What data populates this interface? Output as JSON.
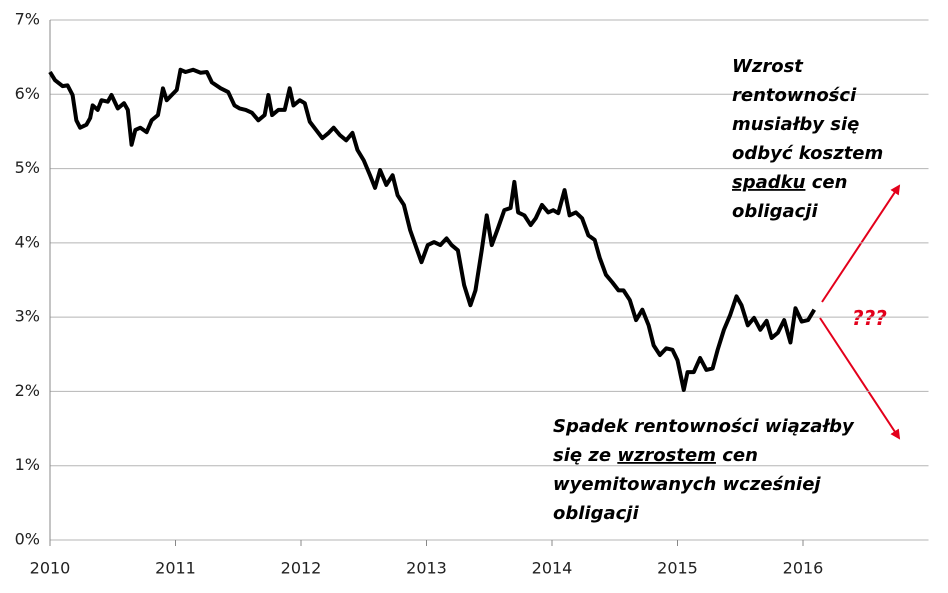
{
  "chart_data": {
    "type": "line",
    "x": [
      2010.0,
      2010.04,
      2010.1,
      2010.14,
      2010.18,
      2010.21,
      2010.24,
      2010.29,
      2010.32,
      2010.34,
      2010.38,
      2010.41,
      2010.46,
      2010.49,
      2010.54,
      2010.59,
      2010.62,
      2010.65,
      2010.68,
      2010.72,
      2010.77,
      2010.81,
      2010.86,
      2010.9,
      2010.93,
      2010.97,
      2011.01,
      2011.04,
      2011.08,
      2011.14,
      2011.2,
      2011.25,
      2011.29,
      2011.36,
      2011.42,
      2011.47,
      2011.51,
      2011.56,
      2011.61,
      2011.66,
      2011.71,
      2011.74,
      2011.77,
      2011.82,
      2011.87,
      2011.91,
      2011.94,
      2011.99,
      2012.03,
      2012.07,
      2012.12,
      2012.17,
      2012.22,
      2012.26,
      2012.31,
      2012.36,
      2012.41,
      2012.45,
      2012.5,
      2012.55,
      2012.59,
      2012.63,
      2012.68,
      2012.73,
      2012.77,
      2012.82,
      2012.87,
      2012.92,
      2012.96,
      2013.01,
      2013.06,
      2013.11,
      2013.16,
      2013.2,
      2013.25,
      2013.3,
      2013.35,
      2013.39,
      2013.44,
      2013.48,
      2013.52,
      2013.57,
      2013.62,
      2013.67,
      2013.7,
      2013.73,
      2013.78,
      2013.83,
      2013.87,
      2013.92,
      2013.97,
      2014.01,
      2014.05,
      2014.1,
      2014.14,
      2014.19,
      2014.24,
      2014.29,
      2014.34,
      2014.38,
      2014.43,
      2014.48,
      2014.53,
      2014.57,
      2014.62,
      2014.67,
      2014.72,
      2014.77,
      2014.81,
      2014.86,
      2014.91,
      2014.96,
      2015.0,
      2015.05,
      2015.08,
      2015.13,
      2015.18,
      2015.23,
      2015.28,
      2015.32,
      2015.37,
      2015.42,
      2015.47,
      2015.51,
      2015.56,
      2015.61,
      2015.66,
      2015.71,
      2015.75,
      2015.8,
      2015.85,
      2015.9,
      2015.94,
      2015.99,
      2016.04,
      2016.09
    ],
    "values": [
      6.3,
      6.19,
      6.11,
      6.12,
      5.99,
      5.65,
      5.55,
      5.59,
      5.68,
      5.85,
      5.79,
      5.92,
      5.9,
      5.99,
      5.81,
      5.88,
      5.79,
      5.32,
      5.52,
      5.55,
      5.49,
      5.65,
      5.72,
      6.08,
      5.92,
      5.99,
      6.06,
      6.33,
      6.3,
      6.33,
      6.29,
      6.3,
      6.16,
      6.08,
      6.03,
      5.85,
      5.81,
      5.79,
      5.75,
      5.65,
      5.72,
      5.99,
      5.72,
      5.79,
      5.79,
      6.08,
      5.85,
      5.92,
      5.88,
      5.63,
      5.52,
      5.41,
      5.48,
      5.55,
      5.45,
      5.38,
      5.48,
      5.25,
      5.11,
      4.91,
      4.74,
      4.98,
      4.78,
      4.91,
      4.64,
      4.51,
      4.17,
      3.93,
      3.74,
      3.97,
      4.01,
      3.97,
      4.06,
      3.97,
      3.9,
      3.43,
      3.16,
      3.36,
      3.9,
      4.37,
      3.97,
      4.2,
      4.44,
      4.47,
      4.82,
      4.41,
      4.37,
      4.24,
      4.33,
      4.51,
      4.41,
      4.44,
      4.4,
      4.71,
      4.37,
      4.41,
      4.33,
      4.1,
      4.04,
      3.8,
      3.57,
      3.47,
      3.36,
      3.36,
      3.23,
      2.96,
      3.1,
      2.89,
      2.62,
      2.49,
      2.58,
      2.56,
      2.42,
      2.02,
      2.26,
      2.26,
      2.45,
      2.29,
      2.31,
      2.56,
      2.83,
      3.03,
      3.28,
      3.16,
      2.89,
      2.99,
      2.83,
      2.95,
      2.72,
      2.79,
      2.96,
      2.66,
      3.12,
      2.94,
      2.96,
      3.1
    ],
    "color": "#000000",
    "xlim": [
      2010,
      2017
    ],
    "ylim": [
      0,
      7
    ],
    "xticks": [
      2010,
      2011,
      2012,
      2013,
      2014,
      2015,
      2016
    ],
    "yticks": [
      {
        "value": 0,
        "label": "0%"
      },
      {
        "value": 1,
        "label": "1%"
      },
      {
        "value": 2,
        "label": "2%"
      },
      {
        "value": 3,
        "label": "3%"
      },
      {
        "value": 4,
        "label": "4%"
      },
      {
        "value": 5,
        "label": "5%"
      },
      {
        "value": 6,
        "label": "6%"
      },
      {
        "value": 7,
        "label": "7%"
      }
    ],
    "grid": true,
    "annotations": [
      {
        "lines": [
          [
            {
              "text": "Wzrost"
            }
          ],
          [
            {
              "text": "rentowności"
            }
          ],
          [
            {
              "text": "musiałby się"
            }
          ],
          [
            {
              "text": "odbyć kosztem"
            }
          ],
          [
            {
              "text": "spadku",
              "underline": true
            },
            {
              "text": " cen"
            }
          ],
          [
            {
              "text": "obligacji"
            }
          ]
        ]
      },
      {
        "lines": [
          [
            {
              "text": "Spadek rentowności wiązałby"
            }
          ],
          [
            {
              "text": "się ze "
            },
            {
              "text": "wzrostem",
              "underline": true
            },
            {
              "text": " cen"
            }
          ],
          [
            {
              "text": "wyemitowanych wcześniej"
            }
          ],
          [
            {
              "text": "obligacji"
            }
          ]
        ]
      }
    ],
    "question": "???"
  }
}
